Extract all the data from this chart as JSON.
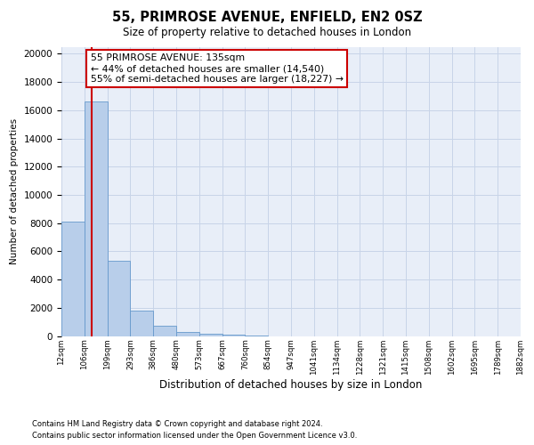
{
  "title": "55, PRIMROSE AVENUE, ENFIELD, EN2 0SZ",
  "subtitle": "Size of property relative to detached houses in London",
  "xlabel": "Distribution of detached houses by size in London",
  "ylabel": "Number of detached properties",
  "footnote1": "Contains HM Land Registry data © Crown copyright and database right 2024.",
  "footnote2": "Contains public sector information licensed under the Open Government Licence v3.0.",
  "bin_labels": [
    "12sqm",
    "106sqm",
    "199sqm",
    "293sqm",
    "386sqm",
    "480sqm",
    "573sqm",
    "667sqm",
    "760sqm",
    "854sqm",
    "947sqm",
    "1041sqm",
    "1134sqm",
    "1228sqm",
    "1321sqm",
    "1415sqm",
    "1508sqm",
    "1602sqm",
    "1695sqm",
    "1789sqm",
    "1882sqm"
  ],
  "bar_values": [
    8100,
    16600,
    5300,
    1800,
    700,
    280,
    160,
    100,
    60,
    0,
    0,
    0,
    0,
    0,
    0,
    0,
    0,
    0,
    0,
    0
  ],
  "bar_color": "#b8ceea",
  "bar_edge_color": "#6699cc",
  "grid_color": "#c8d4e8",
  "background_color": "#e8eef8",
  "red_line_color": "#cc0000",
  "red_line_x": 1.35,
  "annotation_text": "55 PRIMROSE AVENUE: 135sqm\n← 44% of detached houses are smaller (14,540)\n55% of semi-detached houses are larger (18,227) →",
  "annotation_box_color": "#cc0000",
  "ylim": [
    0,
    20500
  ],
  "yticks": [
    0,
    2000,
    4000,
    6000,
    8000,
    10000,
    12000,
    14000,
    16000,
    18000,
    20000
  ]
}
